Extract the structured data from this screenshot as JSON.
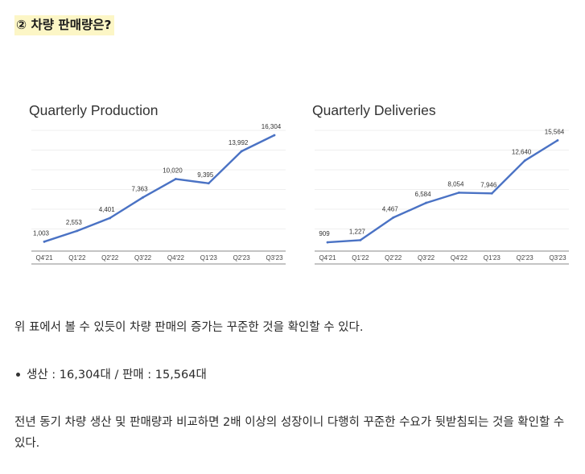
{
  "heading": "② 차량 판매량은?",
  "charts": [
    {
      "title": "Quarterly Production",
      "chart_data": {
        "type": "line",
        "title": "Quarterly Production",
        "categories": [
          "Q4'21",
          "Q1'22",
          "Q2'22",
          "Q3'22",
          "Q4'22",
          "Q1'23",
          "Q2'23",
          "Q3'23"
        ],
        "values": [
          1003,
          2553,
          4401,
          7363,
          10020,
          9395,
          13992,
          16304
        ],
        "value_labels": [
          "1,003",
          "2,553",
          "4,401",
          "7,363",
          "10,020",
          "9,395",
          "13,992",
          "16,304"
        ],
        "ylim": [
          0,
          17000
        ],
        "grid": true,
        "color": "#4a72c4"
      }
    },
    {
      "title": "Quarterly Deliveries",
      "chart_data": {
        "type": "line",
        "title": "Quarterly Deliveries",
        "categories": [
          "Q4'21",
          "Q1'22",
          "Q2'22",
          "Q3'22",
          "Q4'22",
          "Q1'23",
          "Q2'23",
          "Q3'23"
        ],
        "values": [
          909,
          1227,
          4467,
          6584,
          8054,
          7946,
          12640,
          15564
        ],
        "value_labels": [
          "909",
          "1,227",
          "4,467",
          "6,584",
          "8,054",
          "7,946",
          "12,640",
          "15,564"
        ],
        "ylim": [
          0,
          17000
        ],
        "grid": true,
        "color": "#4a72c4"
      }
    }
  ],
  "paragraph1": "위 표에서 볼 수 있듯이 차량 판매의 증가는 꾸준한 것을 확인할 수 있다.",
  "bullet": "생산 : 16,304대 / 판매 : 15,564대",
  "paragraph2": "전년 동기 차량 생산 및 판매량과 비교하면 2배 이상의 성장이니 다행히 꾸준한 수요가 뒷받침되는 것을 확인할 수 있다."
}
